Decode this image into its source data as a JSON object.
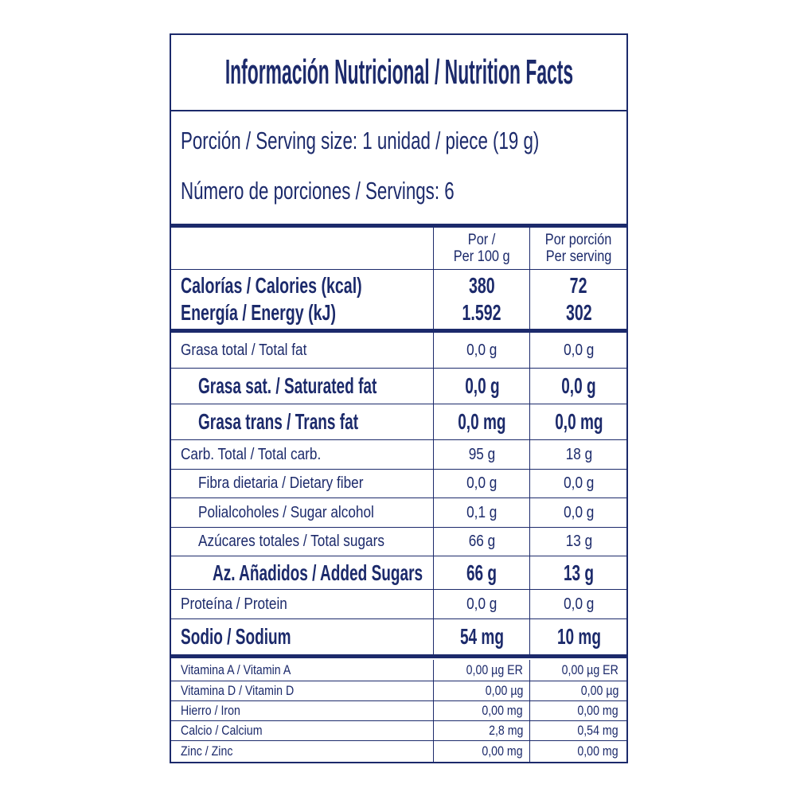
{
  "title": "Información Nutricional / Nutrition Facts",
  "serving_size": "Porción / Serving size: 1 unidad  / piece (19 g)",
  "servings": "Número de porciones / Servings: 6",
  "header": {
    "col1_line1": "Por /",
    "col1_line2": "Per 100 g",
    "col2_line1": "Por porción",
    "col2_line2": "Per serving"
  },
  "energy": {
    "calories_label": "Calorías / Calories (kcal)",
    "calories_100g": "380",
    "calories_serving": "72",
    "energy_label": "Energía / Energy (kJ)",
    "energy_100g": "1.592",
    "energy_serving": "302"
  },
  "nutrients": [
    {
      "label": "Grasa total / Total fat",
      "per_100g": "0,0 g",
      "per_serving": "0,0 g"
    },
    {
      "label": "Grasa sat. / Saturated fat",
      "per_100g": "0,0 g",
      "per_serving": "0,0 g"
    },
    {
      "label": "Grasa trans / Trans fat",
      "per_100g": "0,0 mg",
      "per_serving": "0,0 mg"
    },
    {
      "label": "Carb. Total / Total carb.",
      "per_100g": "95 g",
      "per_serving": "18 g"
    },
    {
      "label": "Fibra dietaria / Dietary fiber",
      "per_100g": "0,0 g",
      "per_serving": "0,0 g"
    },
    {
      "label": "Polialcoholes / Sugar alcohol",
      "per_100g": "0,1 g",
      "per_serving": "0,0 g"
    },
    {
      "label": "Azúcares totales / Total sugars",
      "per_100g": "66 g",
      "per_serving": "13 g"
    },
    {
      "label": "Az. Añadidos / Added Sugars",
      "per_100g": "66 g",
      "per_serving": "13 g"
    },
    {
      "label": "Proteína / Protein",
      "per_100g": "0,0 g",
      "per_serving": "0,0 g"
    },
    {
      "label": "Sodio / Sodium",
      "per_100g": "54 mg",
      "per_serving": "10 mg"
    }
  ],
  "micronutrients": [
    {
      "label": "Vitamina A / Vitamin A",
      "per_100g": "0,00 µg ER",
      "per_serving": "0,00 µg ER"
    },
    {
      "label": "Vitamina D / Vitamin D",
      "per_100g": "0,00 µg",
      "per_serving": "0,00 µg"
    },
    {
      "label": "Hierro / Iron",
      "per_100g": "0,00 mg",
      "per_serving": "0,00 mg"
    },
    {
      "label": "Calcio / Calcium",
      "per_100g": "2,8 mg",
      "per_serving": "0,54 mg"
    },
    {
      "label": "Zinc / Zinc",
      "per_100g": "0,00 mg",
      "per_serving": "0,00 mg"
    }
  ],
  "colors": {
    "ink": "#1c2a6b",
    "background": "#ffffff"
  }
}
